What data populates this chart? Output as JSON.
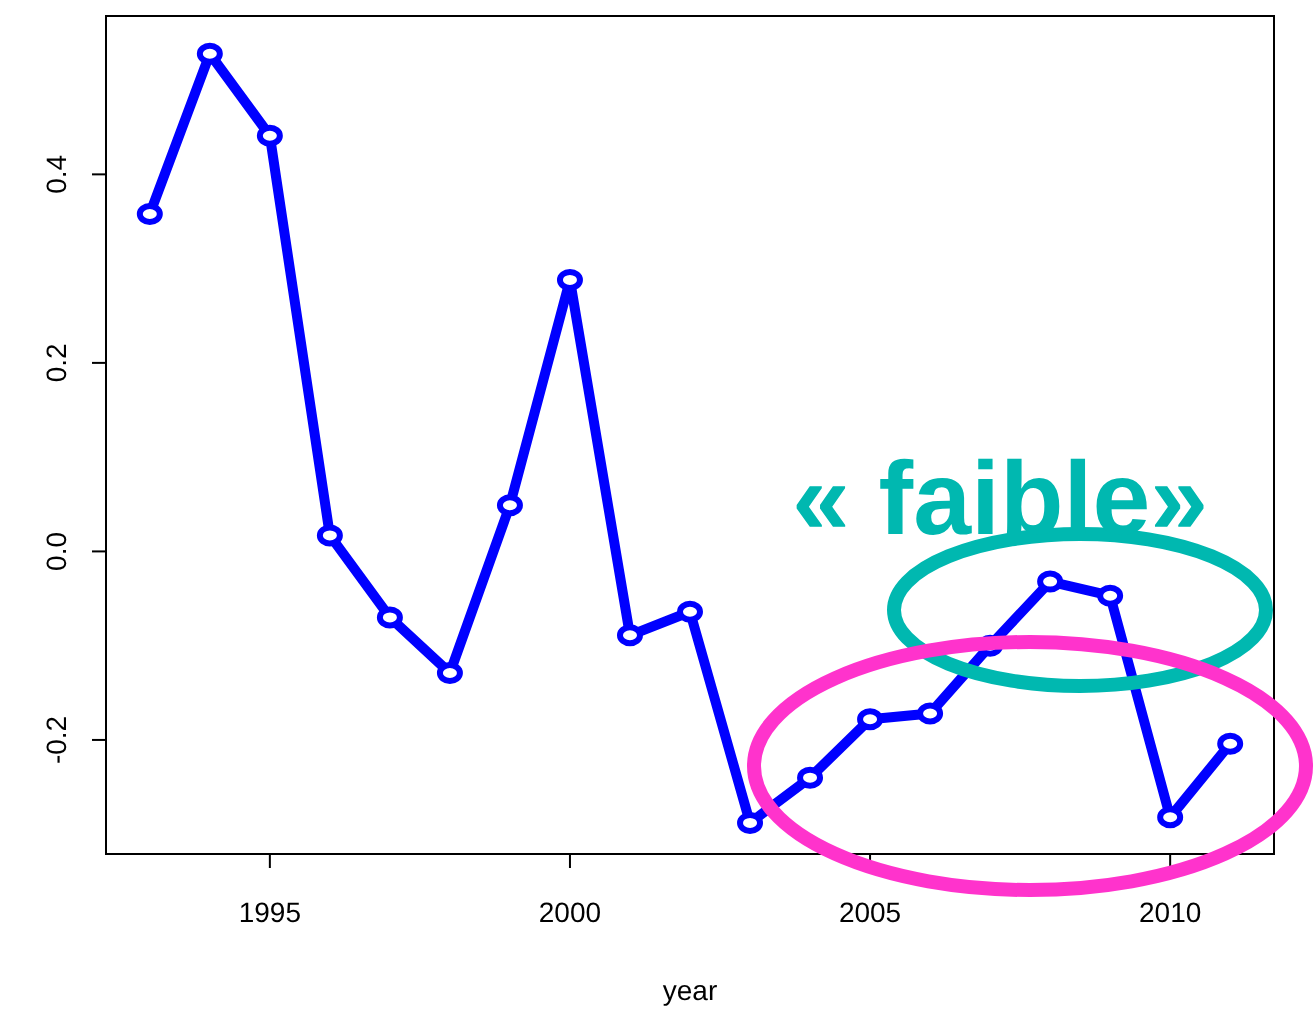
{
  "chart_data": {
    "type": "line",
    "xlabel": "year",
    "x": [
      1993,
      1994,
      1995,
      1996,
      1997,
      1998,
      1999,
      2000,
      2001,
      2002,
      2003,
      2004,
      2005,
      2006,
      2007,
      2008,
      2009,
      2010,
      2011
    ],
    "series": [
      {
        "color": "#0000ff",
        "values": [
          0.358,
          0.528,
          0.441,
          0.017,
          -0.07,
          -0.129,
          0.049,
          0.288,
          -0.089,
          -0.064,
          -0.288,
          -0.24,
          -0.178,
          -0.172,
          -0.1,
          -0.032,
          -0.047,
          -0.282,
          -0.204
        ]
      }
    ],
    "xlim": [
      1992.27,
      2011.73
    ],
    "ylim": [
      -0.321,
      0.568
    ],
    "xticks": [
      1995,
      2000,
      2005,
      2010
    ],
    "yticks": [
      -0.2,
      {
        "value": 0,
        "label": "0.0"
      },
      0.2,
      0.4
    ],
    "marker": "circle",
    "line_style": "solid",
    "grid": false,
    "annotations": [
      "« faible»"
    ]
  }
}
